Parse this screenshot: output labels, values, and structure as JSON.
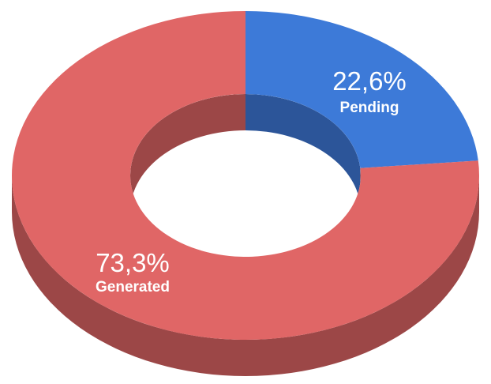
{
  "chart_data": {
    "type": "pie",
    "variant": "3d-donut",
    "title": "",
    "slices": [
      {
        "name": "Pending",
        "value": 22.6,
        "label": "22,6%",
        "color": "#3d7ad8",
        "shade": "#2c5599"
      },
      {
        "name": "Generated",
        "value": 73.3,
        "label": "73,3%",
        "color": "#e06666",
        "shade": "#9c4747"
      }
    ],
    "legend": "none"
  }
}
